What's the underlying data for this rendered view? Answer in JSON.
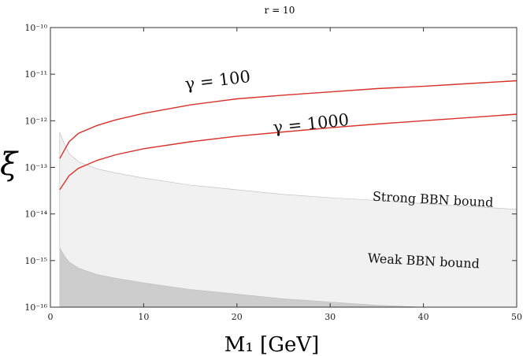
{
  "chart_data": {
    "type": "area",
    "title": "r = 10",
    "xlabel": "M₁ [GeV]",
    "ylabel": "ξ",
    "xlim": [
      0,
      50
    ],
    "ylim_log10": [
      -16,
      -10
    ],
    "yscale": "log",
    "x_ticks": [
      0,
      10,
      20,
      30,
      40,
      50
    ],
    "y_ticks": [
      {
        "exp": -10,
        "label": "10⁻¹⁰"
      },
      {
        "exp": -11,
        "label": "10⁻¹¹"
      },
      {
        "exp": -12,
        "label": "10⁻¹²"
      },
      {
        "exp": -13,
        "label": "10⁻¹³"
      },
      {
        "exp": -14,
        "label": "10⁻¹⁴"
      },
      {
        "exp": -15,
        "label": "10⁻¹⁵"
      },
      {
        "exp": -16,
        "label": "10⁻¹⁶"
      }
    ],
    "grid": false,
    "series": [
      {
        "name": "γ = 100",
        "kind": "line",
        "color": "#d8312a",
        "x": [
          1,
          2,
          3,
          5,
          7,
          10,
          15,
          20,
          25,
          30,
          35,
          40,
          45,
          50
        ],
        "log10_y": [
          -12.81,
          -12.45,
          -12.27,
          -12.1,
          -11.98,
          -11.84,
          -11.66,
          -11.53,
          -11.45,
          -11.38,
          -11.31,
          -11.26,
          -11.2,
          -11.14
        ]
      },
      {
        "name": "γ = 1000",
        "kind": "line",
        "color": "#d8312a",
        "x": [
          1,
          2,
          3,
          5,
          7,
          10,
          15,
          20,
          25,
          30,
          35,
          40,
          45,
          50
        ],
        "log10_y": [
          -13.48,
          -13.18,
          -13.02,
          -12.85,
          -12.73,
          -12.6,
          -12.45,
          -12.33,
          -12.24,
          -12.15,
          -12.07,
          -12.0,
          -11.93,
          -11.86
        ]
      },
      {
        "name": "Strong BBN bound",
        "kind": "area",
        "color": "#f1f1f1",
        "x": [
          1,
          1.5,
          2,
          3,
          5,
          7,
          10,
          15,
          20,
          25,
          30,
          35,
          40,
          45,
          50
        ],
        "log10_y": [
          -12.25,
          -12.5,
          -12.7,
          -12.88,
          -13.03,
          -13.12,
          -13.23,
          -13.38,
          -13.48,
          -13.58,
          -13.65,
          -13.71,
          -13.78,
          -13.84,
          -13.9
        ]
      },
      {
        "name": "Weak BBN bound",
        "kind": "area",
        "color": "#cdcdcd",
        "x": [
          1,
          1.5,
          2,
          3,
          5,
          7,
          10,
          15,
          20,
          25,
          30,
          35,
          40,
          45,
          50
        ],
        "log10_y": [
          -14.72,
          -14.9,
          -15.03,
          -15.16,
          -15.3,
          -15.38,
          -15.48,
          -15.62,
          -15.72,
          -15.82,
          -15.89,
          -15.96,
          -16.02,
          -16.08,
          -16.14
        ]
      }
    ],
    "annotations": [
      {
        "text": "γ = 100",
        "x": 18,
        "log10_y": -11.25,
        "angle": -7,
        "size": 21
      },
      {
        "text": "γ = 1000",
        "x": 28,
        "log10_y": -12.18,
        "angle": -6,
        "size": 21
      },
      {
        "text": "Strong BBN bound",
        "x": 41,
        "log10_y": -13.78,
        "angle": 3,
        "size": 16
      },
      {
        "text": "Weak BBN bound",
        "x": 40,
        "log10_y": -15.1,
        "angle": 3,
        "size": 16
      }
    ]
  }
}
